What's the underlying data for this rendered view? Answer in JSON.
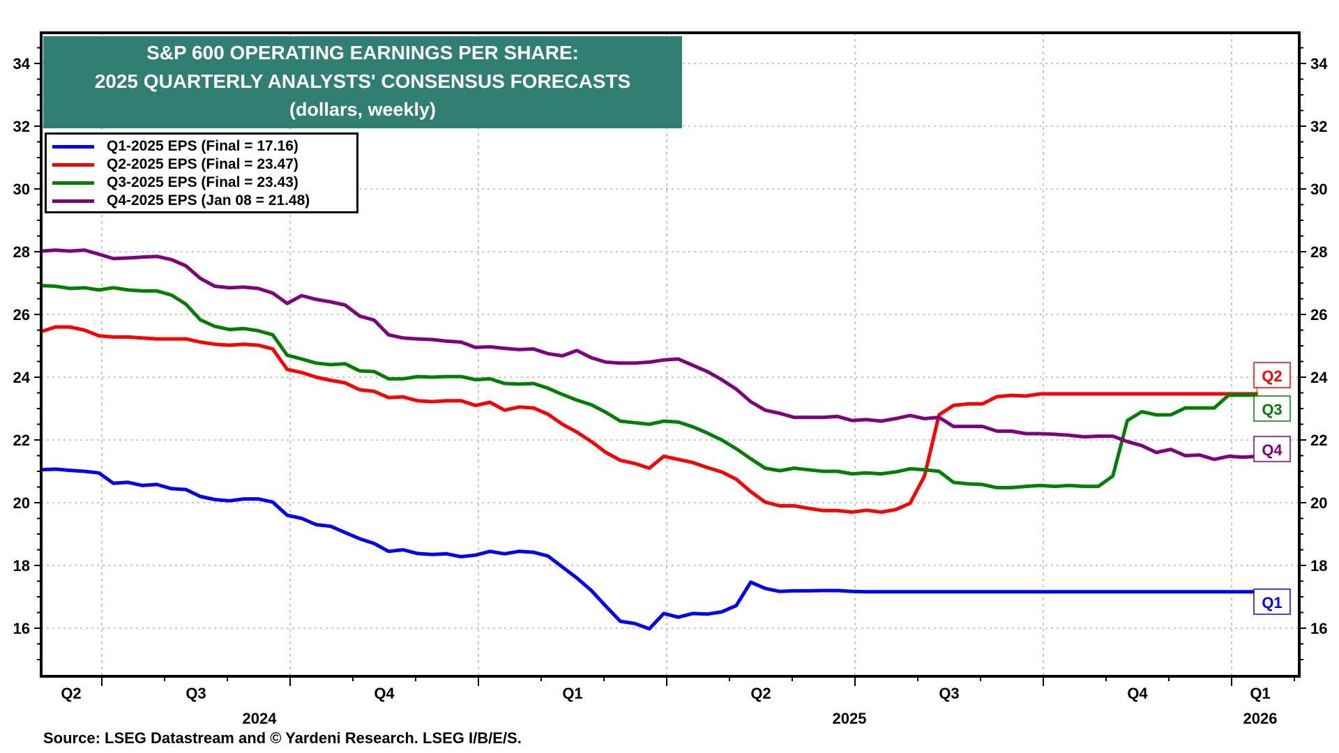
{
  "chart_data": {
    "type": "line",
    "title": "S&P 600 OPERATING EARNINGS PER SHARE:",
    "subtitle": "2025 QUARTERLY ANALYSTS' CONSENSUS FORECASTS",
    "units_note": "(dollars, weekly)",
    "xlabel": "",
    "ylabel": "",
    "ylim": [
      14.5,
      35
    ],
    "yticks": [
      16,
      18,
      20,
      22,
      24,
      26,
      28,
      30,
      32,
      34
    ],
    "grid": true,
    "legend_position": "top-left",
    "x_quarter_labels": [
      {
        "label": "Q2",
        "year": ""
      },
      {
        "label": "Q3",
        "year": "2024"
      },
      {
        "label": "Q4",
        "year": ""
      },
      {
        "label": "Q1",
        "year": ""
      },
      {
        "label": "Q2",
        "year": ""
      },
      {
        "label": "Q3",
        "year": "2025"
      },
      {
        "label": "Q4",
        "year": ""
      },
      {
        "label": "Q1",
        "year": "2026"
      }
    ],
    "x_start_week_offset": -4.2,
    "series": [
      {
        "name": "Q1-2025 EPS (Final = 17.16)",
        "color": "#0000ff",
        "end_label": "Q1",
        "values": [
          21.05,
          21.07,
          21.03,
          21.0,
          20.95,
          20.62,
          20.65,
          20.55,
          20.58,
          20.45,
          20.42,
          20.2,
          20.1,
          20.06,
          20.12,
          20.12,
          20.02,
          19.6,
          19.5,
          19.3,
          19.25,
          19.05,
          18.85,
          18.7,
          18.45,
          18.5,
          18.38,
          18.35,
          18.37,
          18.28,
          18.33,
          18.45,
          18.37,
          18.45,
          18.42,
          18.3,
          17.95,
          17.6,
          17.2,
          16.7,
          16.22,
          16.15,
          15.98,
          16.47,
          16.35,
          16.47,
          16.45,
          16.52,
          16.72,
          17.47,
          17.27,
          17.17,
          17.19,
          17.19,
          17.2,
          17.2,
          17.17,
          17.16,
          17.16,
          17.16,
          17.16,
          17.16,
          17.16,
          17.16,
          17.16,
          17.16,
          17.16,
          17.16,
          17.16,
          17.16,
          17.16,
          17.16,
          17.16,
          17.16,
          17.16,
          17.16,
          17.16,
          17.16,
          17.16,
          17.16,
          17.16,
          17.16,
          17.16,
          17.16,
          17.16
        ]
      },
      {
        "name": "Q2-2025 EPS (Final = 23.47)",
        "color": "#ff0000",
        "end_label": "Q2",
        "values": [
          25.45,
          25.6,
          25.6,
          25.5,
          25.32,
          25.28,
          25.28,
          25.25,
          25.22,
          25.22,
          25.22,
          25.12,
          25.05,
          25.02,
          25.05,
          25.02,
          24.9,
          24.25,
          24.15,
          24.0,
          23.9,
          23.82,
          23.6,
          23.55,
          23.35,
          23.37,
          23.25,
          23.22,
          23.25,
          23.25,
          23.1,
          23.2,
          22.95,
          23.05,
          23.02,
          22.82,
          22.5,
          22.25,
          21.95,
          21.6,
          21.35,
          21.25,
          21.1,
          21.48,
          21.38,
          21.28,
          21.12,
          20.98,
          20.75,
          20.35,
          20.02,
          19.9,
          19.9,
          19.82,
          19.75,
          19.75,
          19.7,
          19.76,
          19.7,
          19.78,
          19.98,
          20.85,
          22.8,
          23.1,
          23.15,
          23.15,
          23.38,
          23.42,
          23.4,
          23.47,
          23.47,
          23.47,
          23.47,
          23.47,
          23.47,
          23.47,
          23.47,
          23.47,
          23.47,
          23.47,
          23.47,
          23.47,
          23.47,
          23.47,
          23.47
        ]
      },
      {
        "name": "Q3-2025 EPS (Final = 23.43)",
        "color": "#008000",
        "end_label": "Q3",
        "values": [
          26.92,
          26.9,
          26.83,
          26.85,
          26.78,
          26.85,
          26.78,
          26.75,
          26.75,
          26.62,
          26.33,
          25.83,
          25.62,
          25.52,
          25.55,
          25.48,
          25.35,
          24.7,
          24.58,
          24.45,
          24.4,
          24.43,
          24.2,
          24.18,
          23.95,
          23.95,
          24.02,
          24.0,
          24.02,
          24.02,
          23.92,
          23.95,
          23.8,
          23.78,
          23.8,
          23.65,
          23.45,
          23.27,
          23.12,
          22.88,
          22.6,
          22.55,
          22.5,
          22.6,
          22.57,
          22.42,
          22.22,
          22.0,
          21.72,
          21.4,
          21.1,
          21.02,
          21.1,
          21.05,
          21.0,
          21.0,
          20.92,
          20.95,
          20.92,
          20.98,
          21.08,
          21.05,
          21.0,
          20.65,
          20.6,
          20.58,
          20.48,
          20.48,
          20.52,
          20.55,
          20.52,
          20.55,
          20.52,
          20.52,
          20.85,
          22.62,
          22.9,
          22.8,
          22.8,
          23.02,
          23.02,
          23.02,
          23.43,
          23.43,
          23.43
        ]
      },
      {
        "name": "Q4-2025 EPS (Jan 08 = 21.48)",
        "color": "#800080",
        "end_label": "Q4",
        "values": [
          28.02,
          28.05,
          28.02,
          28.05,
          27.92,
          27.78,
          27.8,
          27.83,
          27.85,
          27.75,
          27.55,
          27.15,
          26.9,
          26.85,
          26.87,
          26.83,
          26.68,
          26.35,
          26.6,
          26.48,
          26.4,
          26.3,
          25.95,
          25.82,
          25.35,
          25.25,
          25.22,
          25.2,
          25.15,
          25.12,
          24.95,
          24.97,
          24.92,
          24.88,
          24.9,
          24.75,
          24.68,
          24.85,
          24.62,
          24.48,
          24.45,
          24.45,
          24.48,
          24.55,
          24.58,
          24.38,
          24.18,
          23.92,
          23.62,
          23.22,
          22.95,
          22.85,
          22.72,
          22.72,
          22.72,
          22.75,
          22.62,
          22.65,
          22.6,
          22.68,
          22.78,
          22.68,
          22.72,
          22.43,
          22.43,
          22.43,
          22.28,
          22.28,
          22.2,
          22.2,
          22.18,
          22.15,
          22.1,
          22.12,
          22.12,
          21.95,
          21.82,
          21.6,
          21.7,
          21.5,
          21.52,
          21.38,
          21.48,
          21.45,
          21.48
        ]
      }
    ]
  },
  "legend": [
    {
      "label": "Q1-2025 EPS (Final = 17.16)",
      "color": "#0000ff"
    },
    {
      "label": "Q2-2025 EPS (Final = 23.47)",
      "color": "#ff0000"
    },
    {
      "label": "Q3-2025 EPS (Final = 23.43)",
      "color": "#008000"
    },
    {
      "label": "Q4-2025 EPS (Jan 08 = 21.48)",
      "color": "#800080"
    }
  ],
  "title_lines": [
    "S&P 600 OPERATING EARNINGS PER SHARE:",
    "2025 QUARTERLY ANALYSTS' CONSENSUS FORECASTS",
    "(dollars, weekly)"
  ],
  "source": "Source: LSEG Datastream and © Yardeni Research. LSEG I/B/E/S.",
  "colors": {
    "title_bg": "#2f7f72",
    "grid": "#c8c8c8"
  }
}
